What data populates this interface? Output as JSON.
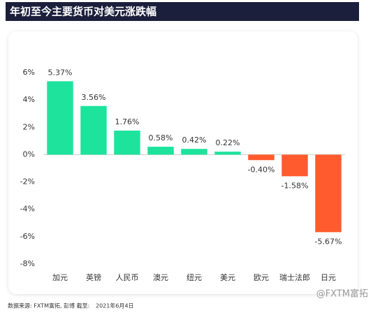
{
  "chart_data": {
    "type": "bar",
    "title": "年初至今主要货币对美元涨跌幅",
    "categories": [
      "加元",
      "英镑",
      "人民币",
      "澳元",
      "纽元",
      "美元",
      "欧元",
      "瑞士法郎",
      "日元"
    ],
    "values": [
      5.37,
      3.56,
      1.76,
      0.58,
      0.42,
      0.22,
      -0.4,
      -1.58,
      -5.67
    ],
    "value_labels": [
      "5.37%",
      "3.56%",
      "1.76%",
      "0.58%",
      "0.42%",
      "0.22%",
      "-0.40%",
      "-1.58%",
      "-5.67%"
    ],
    "positive_color": "#1de39c",
    "negative_color": "#ff5b2e",
    "ylim": [
      -8,
      6
    ],
    "yticks": [
      {
        "value": 6,
        "label": "6%"
      },
      {
        "value": 4,
        "label": "4%"
      },
      {
        "value": 2,
        "label": "2%"
      },
      {
        "value": 0,
        "label": "0%"
      },
      {
        "value": -2,
        "label": "-2%"
      },
      {
        "value": -4,
        "label": "-4%"
      },
      {
        "value": -6,
        "label": "-6%"
      },
      {
        "value": -8,
        "label": "-8%"
      }
    ],
    "grid": false,
    "source": "数据来源: FXTM富拓, 彭博 截至:",
    "date": "2021年6月4日",
    "watermark": "@FXTM富拓"
  }
}
